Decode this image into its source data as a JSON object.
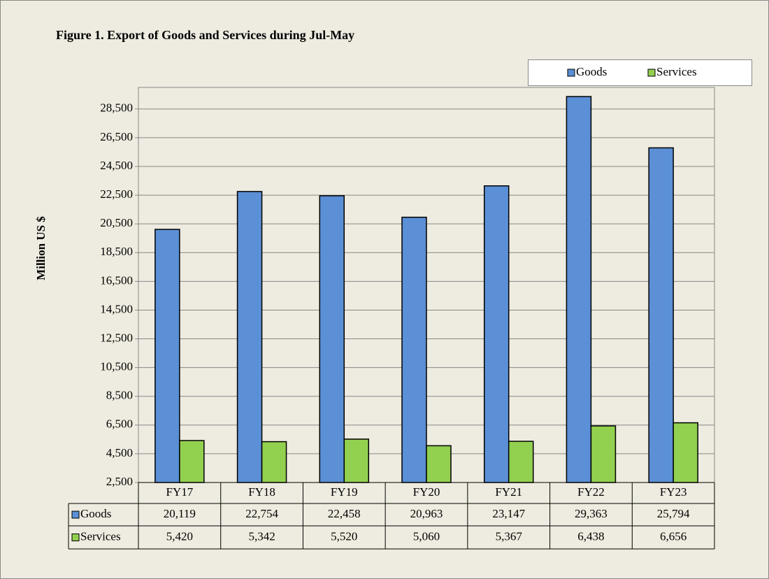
{
  "chart_data": {
    "type": "bar",
    "title": "Figure 1. Export of Goods and Services during Jul-May",
    "y_label": "Million US $",
    "categories": [
      "FY17",
      "FY18",
      "FY19",
      "FY20",
      "FY21",
      "FY22",
      "FY23"
    ],
    "series": [
      {
        "name": "Goods",
        "color": "#5b8fd6",
        "values": [
          20119,
          22754,
          22458,
          20963,
          23147,
          29363,
          25794
        ],
        "value_labels": [
          "20,119",
          "22,754",
          "22,458",
          "20,963",
          "23,147",
          "29,363",
          "25,794"
        ]
      },
      {
        "name": "Services",
        "color": "#92d050",
        "values": [
          5420,
          5342,
          5520,
          5060,
          5367,
          6438,
          6656
        ],
        "value_labels": [
          "5,420",
          "5,342",
          "5,520",
          "5,060",
          "5,367",
          "6,438",
          "6,656"
        ]
      }
    ],
    "ylim": [
      2500,
      30000
    ],
    "yticks": [
      {
        "value": 2500,
        "label": "2,500"
      },
      {
        "value": 4500,
        "label": "4,500"
      },
      {
        "value": 6500,
        "label": "6,500"
      },
      {
        "value": 8500,
        "label": "8,500"
      },
      {
        "value": 10500,
        "label": "10,500"
      },
      {
        "value": 12500,
        "label": "12,500"
      },
      {
        "value": 14500,
        "label": "14,500"
      },
      {
        "value": 16500,
        "label": "16,500"
      },
      {
        "value": 18500,
        "label": "18,500"
      },
      {
        "value": 20500,
        "label": "20,500"
      },
      {
        "value": 22500,
        "label": "22,500"
      },
      {
        "value": 24500,
        "label": "24,500"
      },
      {
        "value": 26500,
        "label": "26,500"
      },
      {
        "value": 28500,
        "label": "28,500"
      }
    ],
    "grid": true,
    "legend": "top-right"
  }
}
